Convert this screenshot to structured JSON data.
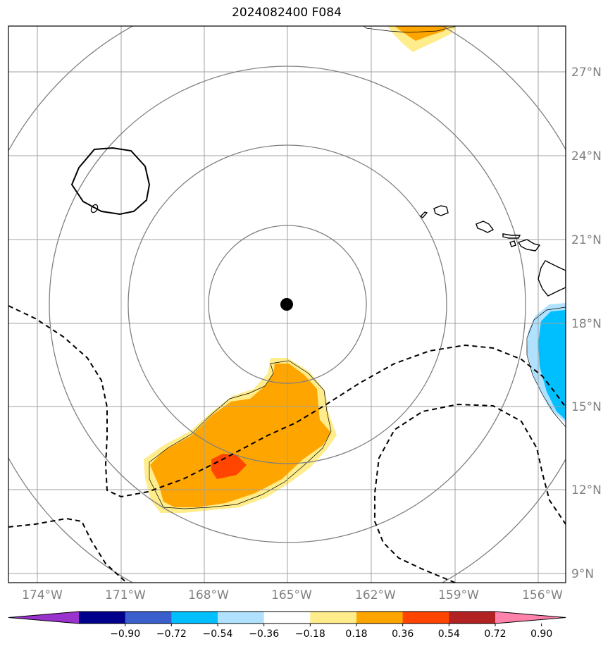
{
  "title": "2024082400 F084",
  "lat_labels": [
    "27°N",
    "24°N",
    "21°N",
    "18°N",
    "15°N",
    "12°N",
    "9°N"
  ],
  "lon_labels": [
    "174°W",
    "171°W",
    "168°W",
    "165°W",
    "162°W",
    "159°W",
    "156°W"
  ],
  "colorbar": {
    "tick_labels": [
      "−0.90",
      "−0.72",
      "−0.54",
      "−0.36",
      "−0.18",
      "0.18",
      "0.36",
      "0.54",
      "0.72",
      "0.90"
    ],
    "colors": [
      "#9a32cd",
      "#00008b",
      "#3a5fcd",
      "#00bfff",
      "#b0e2ff",
      "#ffffff",
      "#ffec8b",
      "#ffa500",
      "#ff4500",
      "#b22222",
      "#ff82ab"
    ]
  },
  "map": {
    "center_marker": "storm-center",
    "range_rings": 4,
    "fill_colors": {
      "light_yellow": "#ffec8b",
      "orange": "#ffa500",
      "red_orange": "#ff4500",
      "light_blue": "#b0e2ff",
      "deep_sky_blue": "#00bfff"
    }
  }
}
